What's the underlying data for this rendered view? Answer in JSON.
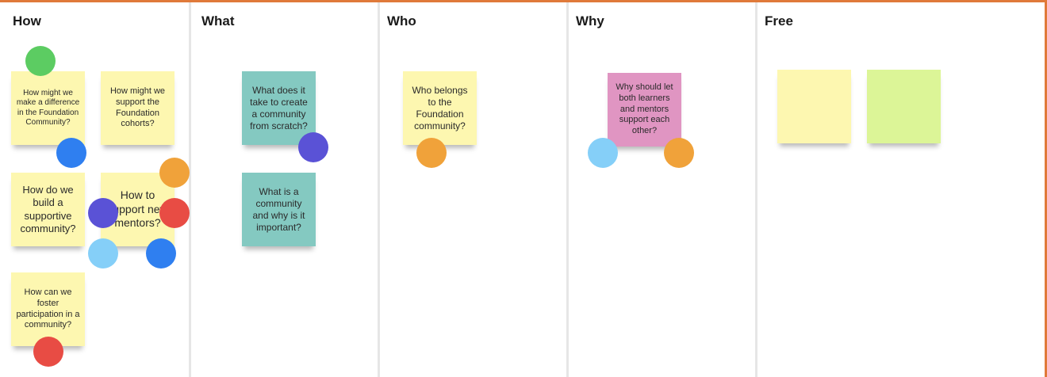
{
  "board": {
    "frame_color": "#e07a3a",
    "columns": [
      {
        "title": "How"
      },
      {
        "title": "What"
      },
      {
        "title": "Who"
      },
      {
        "title": "Why"
      },
      {
        "title": "Free"
      }
    ]
  },
  "notes": {
    "how_difference": "How might we make a difference in the Foundation Community?",
    "how_support_cohorts": "How might we support the Foundation cohorts?",
    "how_build_supportive": "How do we build a supportive community?",
    "how_support_mentors": "How to support new mentors?",
    "how_foster": "How can we foster participation in a community?",
    "what_create": "What does it take to create a community from scratch?",
    "what_is": "What is a community and why is it important?",
    "who_belongs": "Who belongs to the Foundation community?",
    "why_let": "Why should let both learners and mentors support each other?",
    "free_blank_1": "",
    "free_blank_2": ""
  },
  "colors": {
    "note_yellow": "#fdf7b0",
    "note_teal": "#84c9c1",
    "note_pink": "#e095c2",
    "note_lime": "#dcf597",
    "vote_green": "#5ccc62",
    "vote_blue": "#2f7ff0",
    "vote_orange": "#f0a23a",
    "vote_indigo": "#5a52d6",
    "vote_red": "#e84c44",
    "vote_light_blue": "#85cff8"
  }
}
